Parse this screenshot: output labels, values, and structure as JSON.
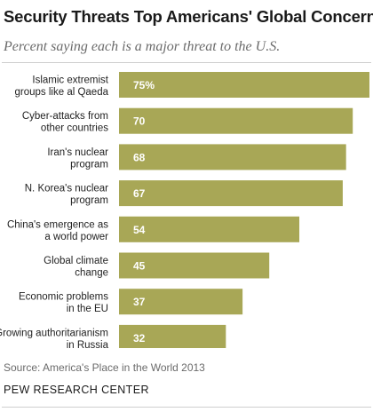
{
  "chart_data": {
    "type": "bar",
    "orientation": "horizontal",
    "title": "Security Threats Top Americans' Global Concerns",
    "subtitle": "Percent saying each is a major threat to the U.S.",
    "categories": [
      [
        "Islamic extremist",
        "groups like al Qaeda"
      ],
      [
        "Cyber-attacks from",
        "other countries"
      ],
      [
        "Iran's nuclear",
        "program"
      ],
      [
        "N. Korea's nuclear",
        "program"
      ],
      [
        "China's emergence as",
        "a world power"
      ],
      [
        "Global climate",
        "change"
      ],
      [
        "Economic problems",
        "in the EU"
      ],
      [
        "Growing authoritarianism",
        "in Russia"
      ]
    ],
    "values": [
      75,
      70,
      68,
      67,
      54,
      45,
      37,
      32
    ],
    "value_labels": [
      "75%",
      "70",
      "68",
      "67",
      "54",
      "45",
      "37",
      "32"
    ],
    "xlim": [
      0,
      75
    ],
    "bar_color": "#a8a756",
    "value_label_color": "#ffffff",
    "grid": false,
    "legend": "none"
  },
  "footer": {
    "source": "Source: America's Place in the World 2013",
    "org": "PEW RESEARCH CENTER"
  }
}
